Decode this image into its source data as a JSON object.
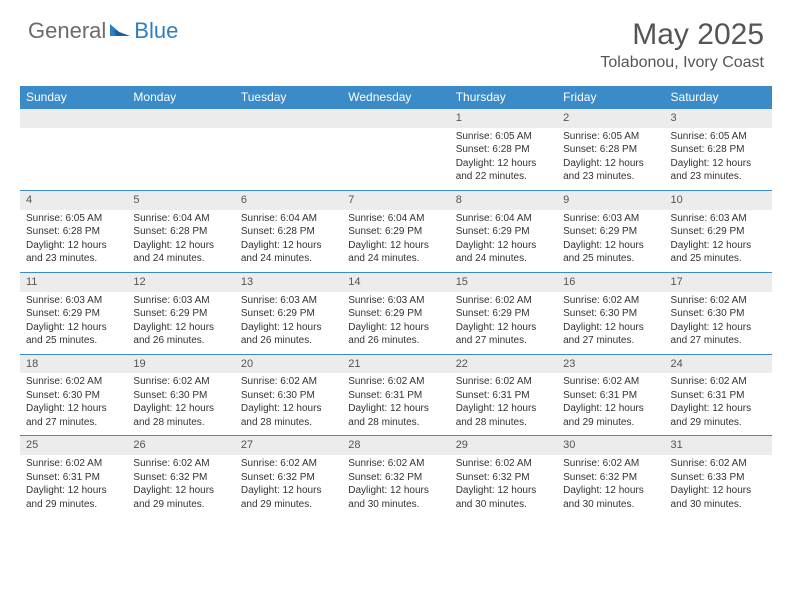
{
  "brand": {
    "part1": "General",
    "part2": "Blue"
  },
  "title": "May 2025",
  "location": "Tolabonou, Ivory Coast",
  "colors": {
    "header_bg": "#3b8bc9",
    "header_text": "#ffffff",
    "daynum_bg": "#ececec",
    "border": "#3b8bc9",
    "brand_gray": "#6b6b6b",
    "brand_blue": "#2d7fc1"
  },
  "day_headers": [
    "Sunday",
    "Monday",
    "Tuesday",
    "Wednesday",
    "Thursday",
    "Friday",
    "Saturday"
  ],
  "weeks": [
    [
      null,
      null,
      null,
      null,
      {
        "n": "1",
        "sr": "Sunrise: 6:05 AM",
        "ss": "Sunset: 6:28 PM",
        "dl1": "Daylight: 12 hours",
        "dl2": "and 22 minutes."
      },
      {
        "n": "2",
        "sr": "Sunrise: 6:05 AM",
        "ss": "Sunset: 6:28 PM",
        "dl1": "Daylight: 12 hours",
        "dl2": "and 23 minutes."
      },
      {
        "n": "3",
        "sr": "Sunrise: 6:05 AM",
        "ss": "Sunset: 6:28 PM",
        "dl1": "Daylight: 12 hours",
        "dl2": "and 23 minutes."
      }
    ],
    [
      {
        "n": "4",
        "sr": "Sunrise: 6:05 AM",
        "ss": "Sunset: 6:28 PM",
        "dl1": "Daylight: 12 hours",
        "dl2": "and 23 minutes."
      },
      {
        "n": "5",
        "sr": "Sunrise: 6:04 AM",
        "ss": "Sunset: 6:28 PM",
        "dl1": "Daylight: 12 hours",
        "dl2": "and 24 minutes."
      },
      {
        "n": "6",
        "sr": "Sunrise: 6:04 AM",
        "ss": "Sunset: 6:28 PM",
        "dl1": "Daylight: 12 hours",
        "dl2": "and 24 minutes."
      },
      {
        "n": "7",
        "sr": "Sunrise: 6:04 AM",
        "ss": "Sunset: 6:29 PM",
        "dl1": "Daylight: 12 hours",
        "dl2": "and 24 minutes."
      },
      {
        "n": "8",
        "sr": "Sunrise: 6:04 AM",
        "ss": "Sunset: 6:29 PM",
        "dl1": "Daylight: 12 hours",
        "dl2": "and 24 minutes."
      },
      {
        "n": "9",
        "sr": "Sunrise: 6:03 AM",
        "ss": "Sunset: 6:29 PM",
        "dl1": "Daylight: 12 hours",
        "dl2": "and 25 minutes."
      },
      {
        "n": "10",
        "sr": "Sunrise: 6:03 AM",
        "ss": "Sunset: 6:29 PM",
        "dl1": "Daylight: 12 hours",
        "dl2": "and 25 minutes."
      }
    ],
    [
      {
        "n": "11",
        "sr": "Sunrise: 6:03 AM",
        "ss": "Sunset: 6:29 PM",
        "dl1": "Daylight: 12 hours",
        "dl2": "and 25 minutes."
      },
      {
        "n": "12",
        "sr": "Sunrise: 6:03 AM",
        "ss": "Sunset: 6:29 PM",
        "dl1": "Daylight: 12 hours",
        "dl2": "and 26 minutes."
      },
      {
        "n": "13",
        "sr": "Sunrise: 6:03 AM",
        "ss": "Sunset: 6:29 PM",
        "dl1": "Daylight: 12 hours",
        "dl2": "and 26 minutes."
      },
      {
        "n": "14",
        "sr": "Sunrise: 6:03 AM",
        "ss": "Sunset: 6:29 PM",
        "dl1": "Daylight: 12 hours",
        "dl2": "and 26 minutes."
      },
      {
        "n": "15",
        "sr": "Sunrise: 6:02 AM",
        "ss": "Sunset: 6:29 PM",
        "dl1": "Daylight: 12 hours",
        "dl2": "and 27 minutes."
      },
      {
        "n": "16",
        "sr": "Sunrise: 6:02 AM",
        "ss": "Sunset: 6:30 PM",
        "dl1": "Daylight: 12 hours",
        "dl2": "and 27 minutes."
      },
      {
        "n": "17",
        "sr": "Sunrise: 6:02 AM",
        "ss": "Sunset: 6:30 PM",
        "dl1": "Daylight: 12 hours",
        "dl2": "and 27 minutes."
      }
    ],
    [
      {
        "n": "18",
        "sr": "Sunrise: 6:02 AM",
        "ss": "Sunset: 6:30 PM",
        "dl1": "Daylight: 12 hours",
        "dl2": "and 27 minutes."
      },
      {
        "n": "19",
        "sr": "Sunrise: 6:02 AM",
        "ss": "Sunset: 6:30 PM",
        "dl1": "Daylight: 12 hours",
        "dl2": "and 28 minutes."
      },
      {
        "n": "20",
        "sr": "Sunrise: 6:02 AM",
        "ss": "Sunset: 6:30 PM",
        "dl1": "Daylight: 12 hours",
        "dl2": "and 28 minutes."
      },
      {
        "n": "21",
        "sr": "Sunrise: 6:02 AM",
        "ss": "Sunset: 6:31 PM",
        "dl1": "Daylight: 12 hours",
        "dl2": "and 28 minutes."
      },
      {
        "n": "22",
        "sr": "Sunrise: 6:02 AM",
        "ss": "Sunset: 6:31 PM",
        "dl1": "Daylight: 12 hours",
        "dl2": "and 28 minutes."
      },
      {
        "n": "23",
        "sr": "Sunrise: 6:02 AM",
        "ss": "Sunset: 6:31 PM",
        "dl1": "Daylight: 12 hours",
        "dl2": "and 29 minutes."
      },
      {
        "n": "24",
        "sr": "Sunrise: 6:02 AM",
        "ss": "Sunset: 6:31 PM",
        "dl1": "Daylight: 12 hours",
        "dl2": "and 29 minutes."
      }
    ],
    [
      {
        "n": "25",
        "sr": "Sunrise: 6:02 AM",
        "ss": "Sunset: 6:31 PM",
        "dl1": "Daylight: 12 hours",
        "dl2": "and 29 minutes."
      },
      {
        "n": "26",
        "sr": "Sunrise: 6:02 AM",
        "ss": "Sunset: 6:32 PM",
        "dl1": "Daylight: 12 hours",
        "dl2": "and 29 minutes."
      },
      {
        "n": "27",
        "sr": "Sunrise: 6:02 AM",
        "ss": "Sunset: 6:32 PM",
        "dl1": "Daylight: 12 hours",
        "dl2": "and 29 minutes."
      },
      {
        "n": "28",
        "sr": "Sunrise: 6:02 AM",
        "ss": "Sunset: 6:32 PM",
        "dl1": "Daylight: 12 hours",
        "dl2": "and 30 minutes."
      },
      {
        "n": "29",
        "sr": "Sunrise: 6:02 AM",
        "ss": "Sunset: 6:32 PM",
        "dl1": "Daylight: 12 hours",
        "dl2": "and 30 minutes."
      },
      {
        "n": "30",
        "sr": "Sunrise: 6:02 AM",
        "ss": "Sunset: 6:32 PM",
        "dl1": "Daylight: 12 hours",
        "dl2": "and 30 minutes."
      },
      {
        "n": "31",
        "sr": "Sunrise: 6:02 AM",
        "ss": "Sunset: 6:33 PM",
        "dl1": "Daylight: 12 hours",
        "dl2": "and 30 minutes."
      }
    ]
  ]
}
